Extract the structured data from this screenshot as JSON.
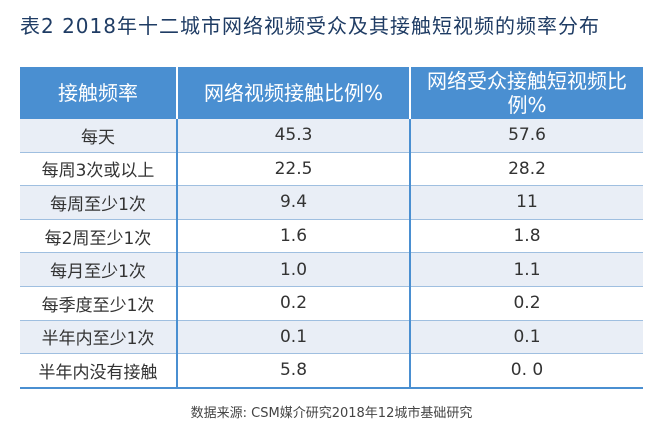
{
  "title": "表2  2018年十二城市网络视频受众及其接触短视频的频率分布",
  "table": {
    "headers": [
      "接触频率",
      "网络视频接触比例%",
      "网络受众接触短视频比例%"
    ],
    "rows": [
      [
        "每天",
        "45.3",
        "57.6"
      ],
      [
        "每周3次或以上",
        "22.5",
        "28.2"
      ],
      [
        "每周至少1次",
        "9.4",
        "11"
      ],
      [
        "每2周至少1次",
        "1.6",
        "1.8"
      ],
      [
        "每月至少1次",
        "1.0",
        "1.1"
      ],
      [
        "每季度至少1次",
        "0.2",
        "0.2"
      ],
      [
        "半年内至少1次",
        "0.1",
        "0.1"
      ],
      [
        "半年内没有接触",
        "5.8",
        "0. 0"
      ]
    ]
  },
  "source": "数据来源:  CSM媒介研究2018年12城市基础研究",
  "colors": {
    "header_bg": "#4a8fd1",
    "stripe_bg": "#e9eef6",
    "title_color": "#1f3c64"
  }
}
